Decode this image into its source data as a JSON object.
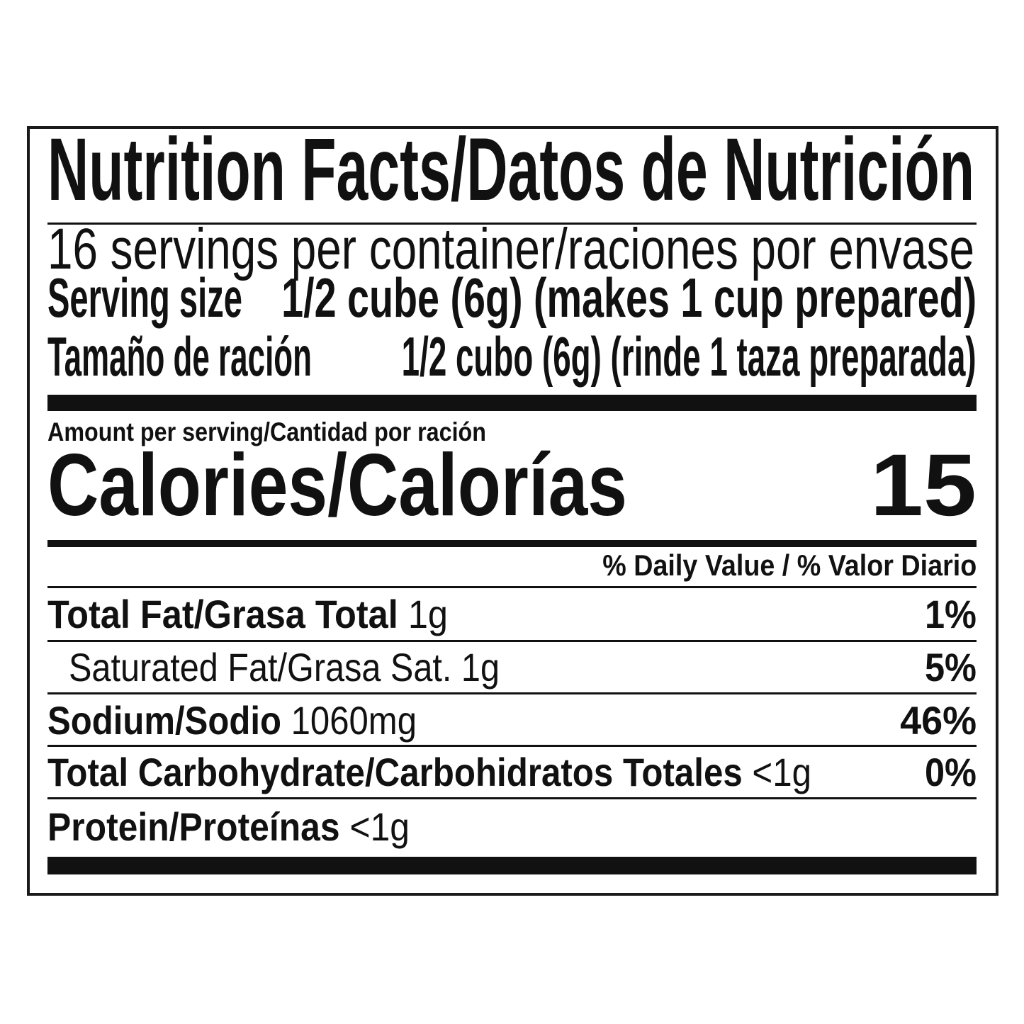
{
  "label": {
    "title": "Nutrition Facts/Datos de Nutrición",
    "servings_per_container": "16 servings per container/raciones por envase",
    "serving_size_label": "Serving size",
    "serving_size_value": "1/2 cube (6g) (makes 1 cup prepared)",
    "serving_size_label_es": "Tamaño de ración",
    "serving_size_value_es": "1/2 cubo (6g) (rinde 1 taza preparada)",
    "amount_per_serving": "Amount per serving/Cantidad por ración",
    "calories_label": "Calories/Calorías",
    "calories_value": "15",
    "daily_value_header": "% Daily Value / % Valor Diario",
    "nutrients": [
      {
        "name": "Total Fat/Grasa Total",
        "amount": "1g",
        "dv": "1%"
      },
      {
        "name": "Saturated Fat/Grasa Sat.",
        "amount": "1g",
        "dv": "5%"
      },
      {
        "name": "Sodium/Sodio",
        "amount": "1060mg",
        "dv": "46%"
      },
      {
        "name": "Total Carbohydrate/Carbohidratos Totales",
        "amount": "<1g",
        "dv": "0%"
      },
      {
        "name": "Protein/Proteínas",
        "amount": "<1g",
        "dv": ""
      }
    ]
  }
}
